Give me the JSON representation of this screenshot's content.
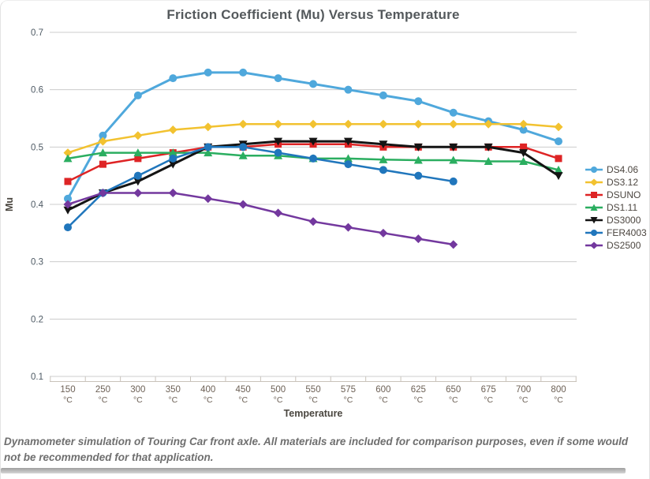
{
  "title": "Friction Coefficient (Mu) Versus Temperature",
  "caption": "Dynamometer simulation of Touring Car front axle. All materials are included for comparison purposes, even if some would not be recommended for that application.",
  "chart_data": {
    "type": "line",
    "title": "Friction Coefficient (Mu) Versus Temperature",
    "xlabel": "Temperature",
    "ylabel": "Mu",
    "ylim": [
      0.1,
      0.7
    ],
    "ytick_step": 0.1,
    "grid": true,
    "legend_position": "right",
    "categories": [
      "150",
      "250",
      "300",
      "350",
      "400",
      "450",
      "500",
      "550",
      "575",
      "600",
      "625",
      "650",
      "675",
      "700",
      "800"
    ],
    "category_unit": "°C",
    "series": [
      {
        "name": "DS4.06",
        "color": "#4FA8DC",
        "marker": "circle",
        "values": [
          0.41,
          0.52,
          0.59,
          0.62,
          0.63,
          0.63,
          0.62,
          0.61,
          0.6,
          0.59,
          0.58,
          0.56,
          0.545,
          0.53,
          0.51
        ]
      },
      {
        "name": "DS3.12",
        "color": "#F2C230",
        "marker": "diamond",
        "values": [
          0.49,
          0.51,
          0.52,
          0.53,
          0.535,
          0.54,
          0.54,
          0.54,
          0.54,
          0.54,
          0.54,
          0.54,
          0.54,
          0.54,
          0.535
        ]
      },
      {
        "name": "DSUNO",
        "color": "#DE2425",
        "marker": "square",
        "values": [
          0.44,
          0.47,
          0.48,
          0.49,
          0.5,
          0.5,
          0.505,
          0.505,
          0.505,
          0.5,
          0.5,
          0.5,
          0.5,
          0.5,
          0.48
        ]
      },
      {
        "name": "DS1.11",
        "color": "#2BAE60",
        "marker": "triangle-up",
        "values": [
          0.48,
          0.49,
          0.49,
          0.49,
          0.49,
          0.485,
          0.485,
          0.48,
          0.48,
          0.478,
          0.477,
          0.477,
          0.475,
          0.475,
          0.46
        ]
      },
      {
        "name": "DS3000",
        "color": "#141414",
        "marker": "triangle-down",
        "values": [
          0.39,
          0.42,
          0.44,
          0.47,
          0.5,
          0.505,
          0.51,
          0.51,
          0.51,
          0.505,
          0.5,
          0.5,
          0.5,
          0.49,
          0.45
        ]
      },
      {
        "name": "FER4003",
        "color": "#2076BC",
        "marker": "circle",
        "values": [
          0.36,
          0.42,
          0.45,
          0.48,
          0.5,
          0.5,
          0.49,
          0.48,
          0.47,
          0.46,
          0.45,
          0.44,
          null,
          null,
          null
        ]
      },
      {
        "name": "DS2500",
        "color": "#73389E",
        "marker": "diamond",
        "values": [
          0.4,
          0.42,
          0.42,
          0.42,
          0.41,
          0.4,
          0.385,
          0.37,
          0.36,
          0.35,
          0.34,
          0.33,
          null,
          null,
          null
        ]
      }
    ]
  }
}
